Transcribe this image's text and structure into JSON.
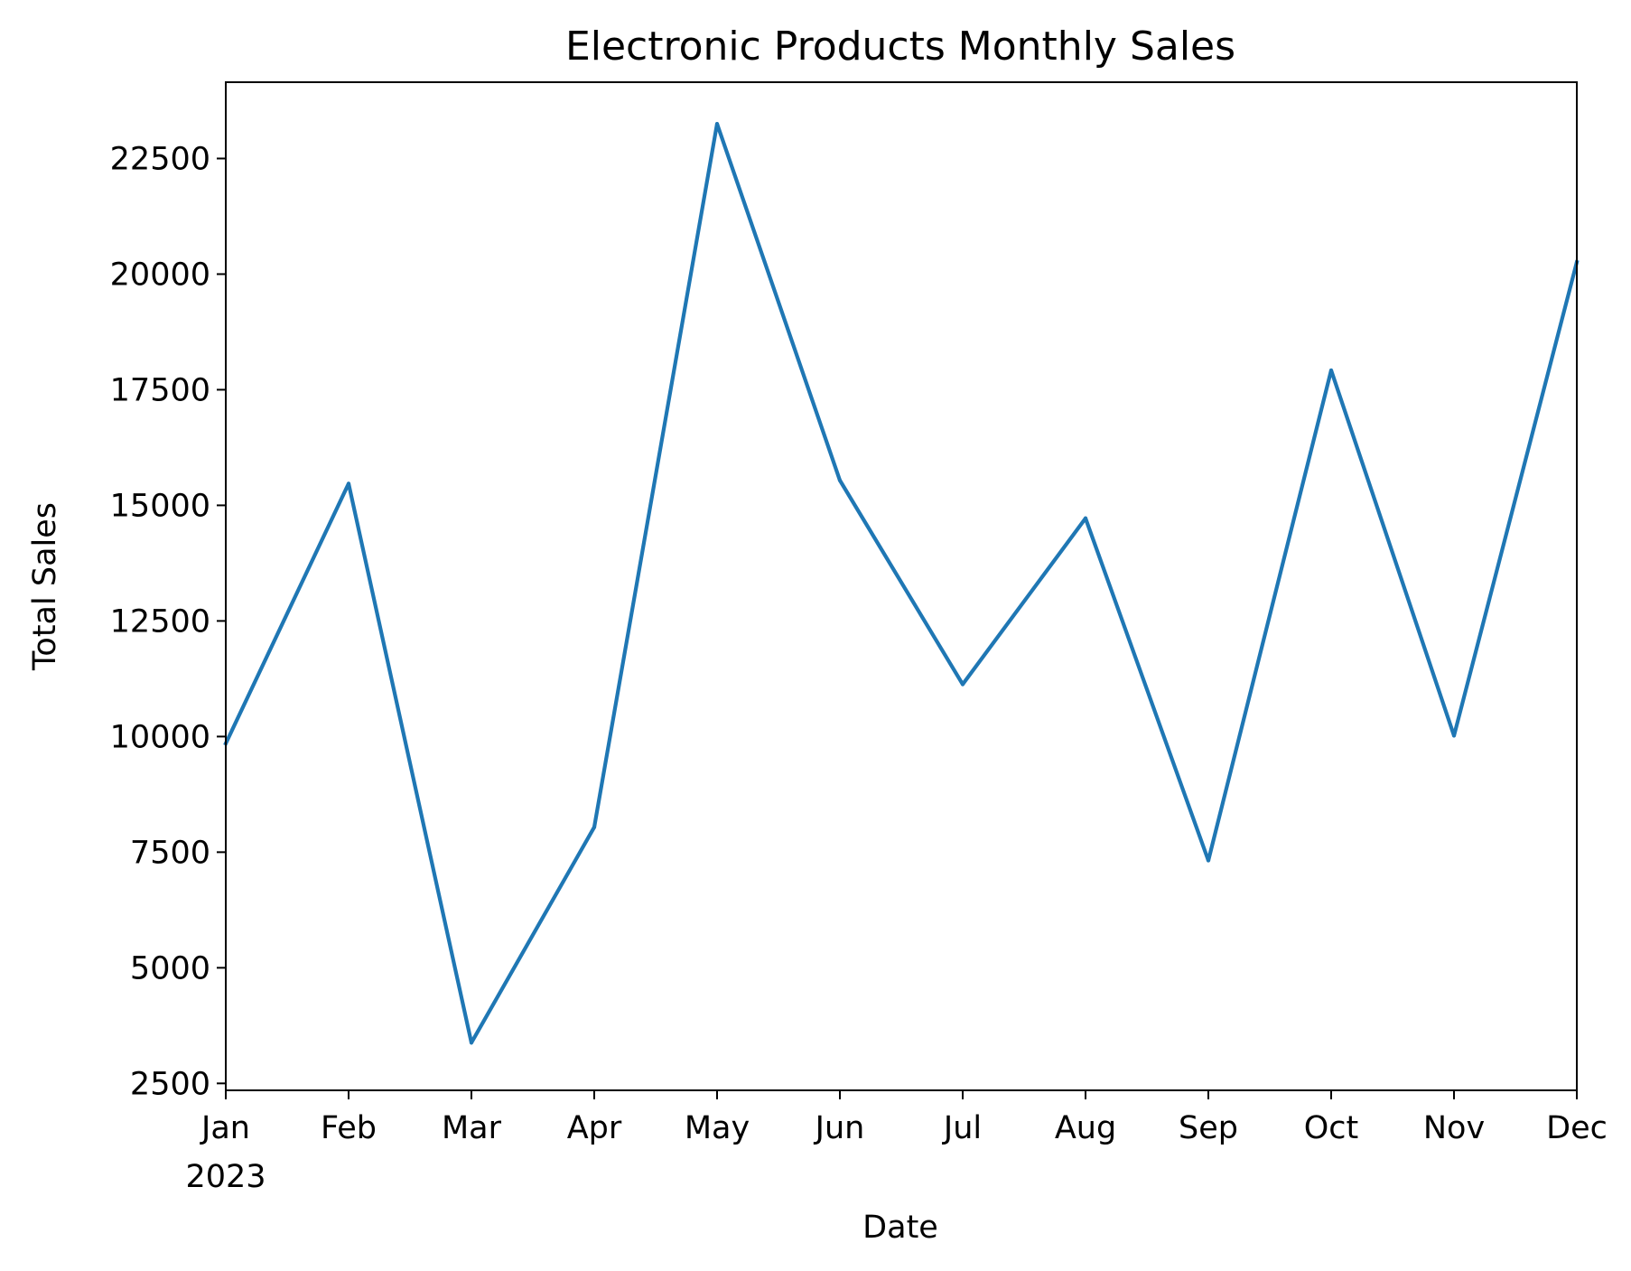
{
  "chart_data": {
    "type": "line",
    "title": "Electronic Products Monthly Sales",
    "xlabel": "Date",
    "ylabel": "Total Sales",
    "x": [
      "2023-01",
      "2023-02",
      "2023-03",
      "2023-04",
      "2023-05",
      "2023-06",
      "2023-07",
      "2023-08",
      "2023-09",
      "2023-10",
      "2023-11",
      "2023-12"
    ],
    "x_tick_labels": [
      "Jan",
      "Feb",
      "Mar",
      "Apr",
      "May",
      "Jun",
      "Jul",
      "Aug",
      "Sep",
      "Oct",
      "Nov",
      "Dec"
    ],
    "x_year_label": "2023",
    "series": [
      {
        "values": [
          9850,
          15470,
          3380,
          8040,
          23250,
          15540,
          11130,
          14720,
          7320,
          17920,
          10020,
          20260
        ]
      }
    ],
    "xlim": [
      "2023-01",
      "2023-12"
    ],
    "ylim": [
      2350,
      24150
    ],
    "y_ticks": [
      2500,
      5000,
      7500,
      10000,
      12500,
      15000,
      17500,
      20000,
      22500
    ],
    "grid": false,
    "legend": "none",
    "colors": {
      "line": "#1f77b4",
      "axes": "#000000",
      "background": "#ffffff"
    }
  }
}
